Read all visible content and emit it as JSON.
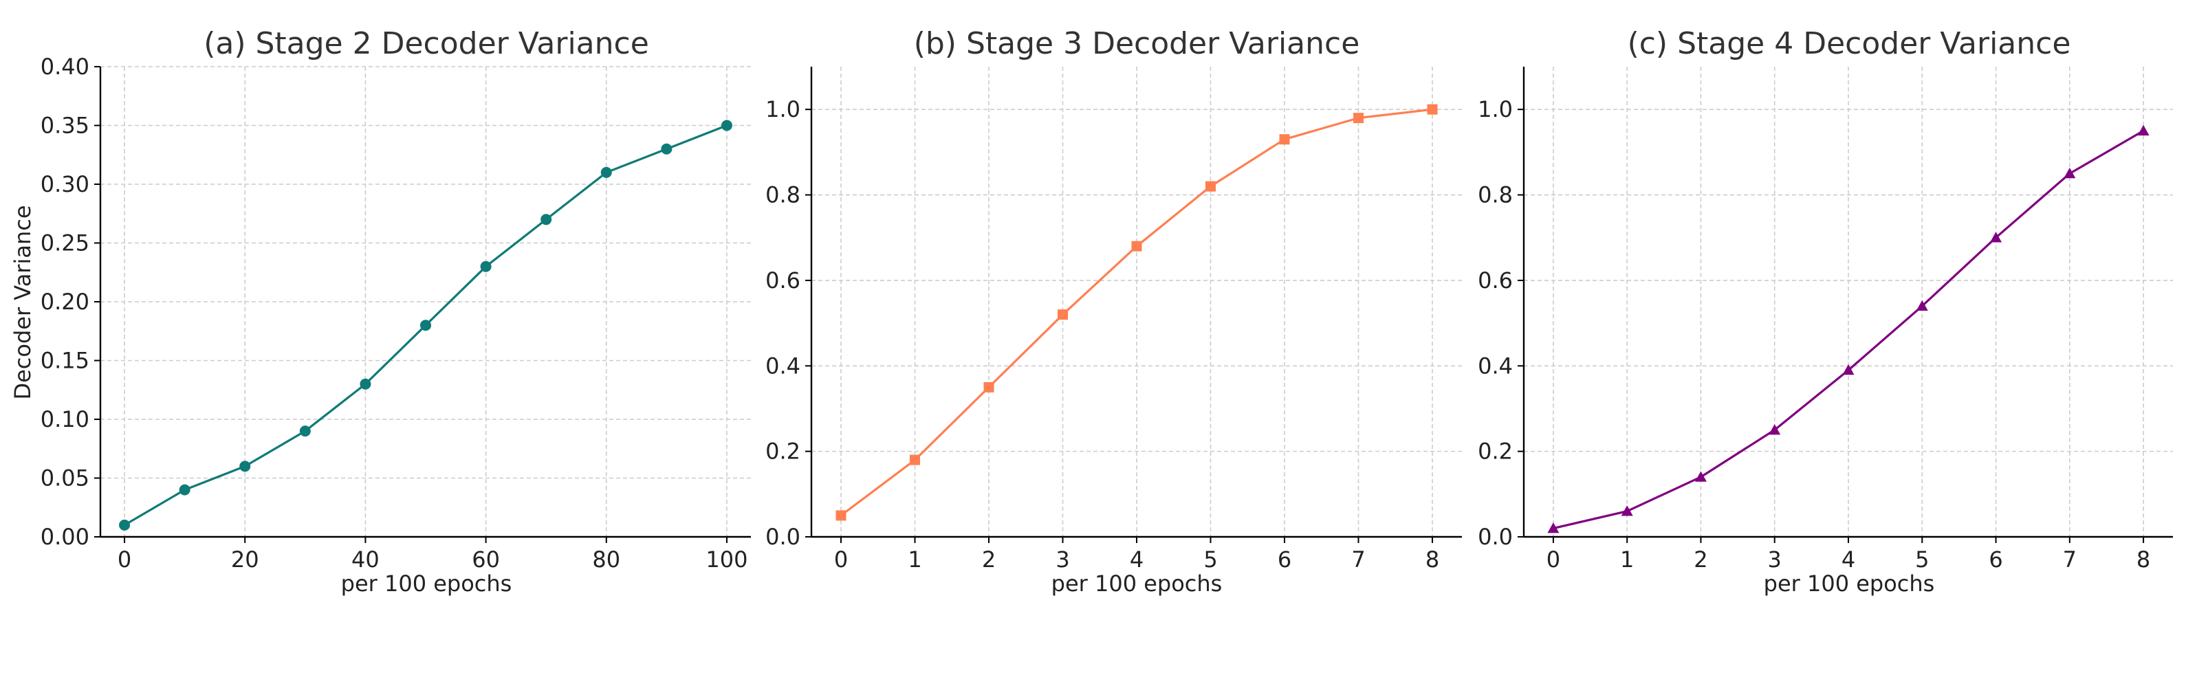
{
  "chart_data": [
    {
      "type": "line",
      "title": "(a) Stage 2 Decoder Variance",
      "xlabel": "per 100 epochs",
      "ylabel": "Decoder Variance",
      "x": [
        0,
        10,
        20,
        30,
        40,
        50,
        60,
        70,
        80,
        90,
        100
      ],
      "series": [
        {
          "values": [
            0.01,
            0.04,
            0.06,
            0.09,
            0.13,
            0.18,
            0.23,
            0.27,
            0.31,
            0.33,
            0.35
          ],
          "color": "#0f7b78",
          "marker": "circle"
        }
      ],
      "xticks": [
        0,
        20,
        40,
        60,
        80,
        100
      ],
      "xtick_labels": [
        "0",
        "20",
        "40",
        "60",
        "80",
        "100"
      ],
      "yticks": [
        0.0,
        0.05,
        0.1,
        0.15,
        0.2,
        0.25,
        0.3,
        0.35,
        0.4
      ],
      "ytick_labels": [
        "0.00",
        "0.05",
        "0.10",
        "0.15",
        "0.20",
        "0.25",
        "0.30",
        "0.35",
        "0.40"
      ],
      "xlim": [
        -4,
        104
      ],
      "ylim": [
        0,
        0.4
      ],
      "grid": true
    },
    {
      "type": "line",
      "title": "(b) Stage 3 Decoder Variance",
      "xlabel": "per 100 epochs",
      "ylabel": "",
      "x": [
        0,
        1,
        2,
        3,
        4,
        5,
        6,
        7,
        8
      ],
      "series": [
        {
          "values": [
            0.05,
            0.18,
            0.35,
            0.52,
            0.68,
            0.82,
            0.93,
            0.98,
            1.0
          ],
          "color": "#ff7f50",
          "marker": "square"
        }
      ],
      "xticks": [
        0,
        1,
        2,
        3,
        4,
        5,
        6,
        7,
        8
      ],
      "xtick_labels": [
        "0",
        "1",
        "2",
        "3",
        "4",
        "5",
        "6",
        "7",
        "8"
      ],
      "yticks": [
        0.0,
        0.2,
        0.4,
        0.6,
        0.8,
        1.0
      ],
      "ytick_labels": [
        "0.0",
        "0.2",
        "0.4",
        "0.6",
        "0.8",
        "1.0"
      ],
      "xlim": [
        -0.4,
        8.4
      ],
      "ylim": [
        0,
        1.1
      ],
      "grid": true
    },
    {
      "type": "line",
      "title": "(c) Stage 4 Decoder Variance",
      "xlabel": "per 100 epochs",
      "ylabel": "",
      "x": [
        0,
        1,
        2,
        3,
        4,
        5,
        6,
        7,
        8
      ],
      "series": [
        {
          "values": [
            0.02,
            0.06,
            0.14,
            0.25,
            0.39,
            0.54,
            0.7,
            0.85,
            0.95
          ],
          "color": "#800080",
          "marker": "triangle"
        }
      ],
      "xticks": [
        0,
        1,
        2,
        3,
        4,
        5,
        6,
        7,
        8
      ],
      "xtick_labels": [
        "0",
        "1",
        "2",
        "3",
        "4",
        "5",
        "6",
        "7",
        "8"
      ],
      "yticks": [
        0.0,
        0.2,
        0.4,
        0.6,
        0.8,
        1.0
      ],
      "ytick_labels": [
        "0.0",
        "0.2",
        "0.4",
        "0.6",
        "0.8",
        "1.0"
      ],
      "xlim": [
        -0.4,
        8.4
      ],
      "ylim": [
        0,
        1.1
      ],
      "grid": true
    }
  ]
}
